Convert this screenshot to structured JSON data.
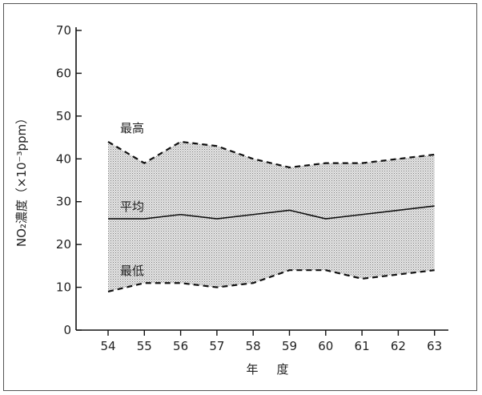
{
  "chart_data": {
    "type": "line",
    "x": [
      "54",
      "55",
      "56",
      "57",
      "58",
      "59",
      "60",
      "61",
      "62",
      "63"
    ],
    "series": [
      {
        "name": "最高",
        "values": [
          44,
          39,
          44,
          43,
          40,
          38,
          39,
          39,
          40,
          41
        ]
      },
      {
        "name": "平均",
        "values": [
          26,
          26,
          27,
          26,
          27,
          28,
          26,
          27,
          28,
          29
        ]
      },
      {
        "name": "最低",
        "values": [
          9,
          11,
          11,
          10,
          11,
          14,
          14,
          12,
          13,
          14
        ]
      }
    ],
    "shaded_band_between": [
      "最高",
      "最低"
    ],
    "xlabel": "年　度",
    "ylabel": "NO₂濃度（×10⁻³ppm）",
    "ylim": [
      0,
      70
    ],
    "yticks": [
      "0",
      "10",
      "20",
      "30",
      "40",
      "50",
      "60",
      "70"
    ],
    "grid": false,
    "colors": {
      "line": "#111111",
      "band": "#cfcfcf"
    }
  }
}
